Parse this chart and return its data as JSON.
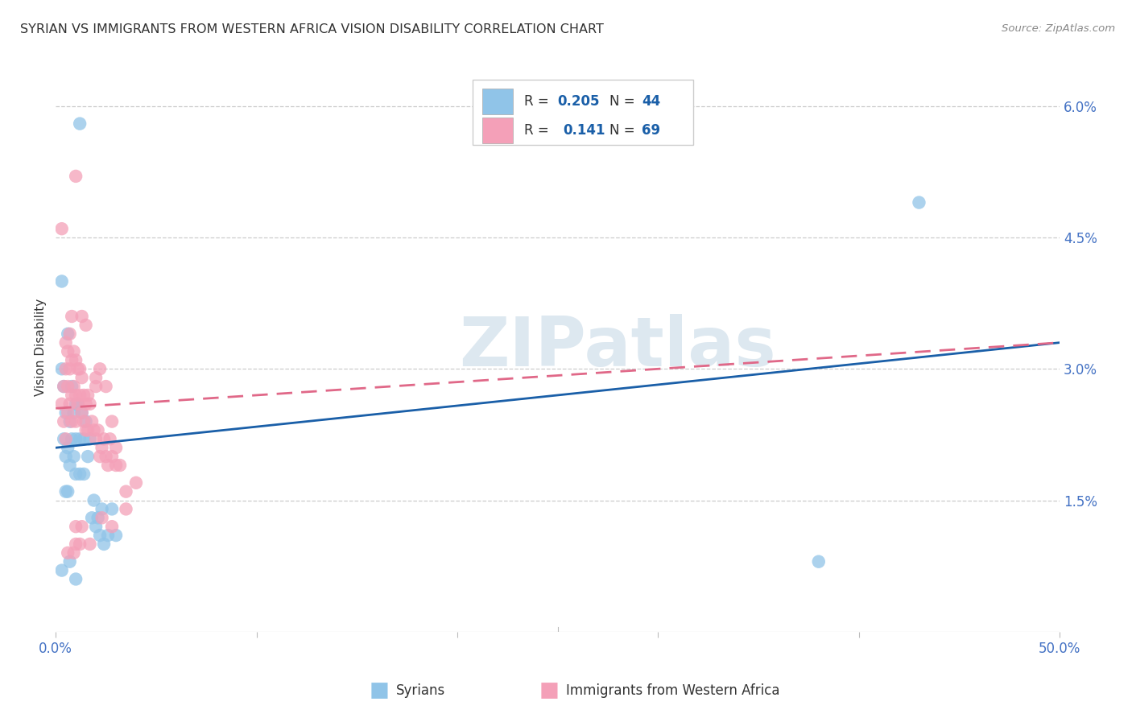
{
  "title": "SYRIAN VS IMMIGRANTS FROM WESTERN AFRICA VISION DISABILITY CORRELATION CHART",
  "source": "Source: ZipAtlas.com",
  "ylabel": "Vision Disability",
  "xlim": [
    0.0,
    0.5
  ],
  "ylim": [
    0.0,
    0.065
  ],
  "legend_blue_R": "0.205",
  "legend_blue_N": "44",
  "legend_pink_R": "0.141",
  "legend_pink_N": "69",
  "scatter_color_blue": "#90c4e8",
  "scatter_color_pink": "#f4a0b8",
  "line_blue_color": "#1a5fa8",
  "line_pink_color": "#e06888",
  "legend_val_color": "#1a5fa8",
  "watermark_color": "#dde8f0",
  "grid_color": "#cccccc",
  "axis_tick_color": "#4472c4",
  "title_color": "#333333",
  "source_color": "#888888",
  "bg_color": "#ffffff",
  "blue_line_x0": 0.0,
  "blue_line_y0": 0.021,
  "blue_line_x1": 0.5,
  "blue_line_y1": 0.033,
  "pink_line_x0": 0.0,
  "pink_line_y0": 0.0255,
  "pink_line_x1": 0.5,
  "pink_line_y1": 0.033,
  "scatter_blue_x": [
    0.012,
    0.003,
    0.004,
    0.004,
    0.005,
    0.005,
    0.005,
    0.006,
    0.006,
    0.007,
    0.007,
    0.008,
    0.009,
    0.009,
    0.01,
    0.01,
    0.01,
    0.011,
    0.012,
    0.012,
    0.013,
    0.014,
    0.014,
    0.015,
    0.016,
    0.017,
    0.018,
    0.019,
    0.02,
    0.021,
    0.022,
    0.023,
    0.024,
    0.026,
    0.028,
    0.03,
    0.003,
    0.006,
    0.008,
    0.003,
    0.007,
    0.01,
    0.38,
    0.43
  ],
  "scatter_blue_y": [
    0.058,
    0.03,
    0.028,
    0.022,
    0.025,
    0.02,
    0.016,
    0.021,
    0.016,
    0.024,
    0.019,
    0.022,
    0.025,
    0.02,
    0.026,
    0.022,
    0.018,
    0.026,
    0.022,
    0.018,
    0.025,
    0.022,
    0.018,
    0.024,
    0.02,
    0.022,
    0.013,
    0.015,
    0.012,
    0.013,
    0.011,
    0.014,
    0.01,
    0.011,
    0.014,
    0.011,
    0.04,
    0.034,
    0.028,
    0.007,
    0.008,
    0.006,
    0.008,
    0.049
  ],
  "scatter_pink_x": [
    0.003,
    0.003,
    0.004,
    0.004,
    0.005,
    0.005,
    0.005,
    0.006,
    0.006,
    0.006,
    0.007,
    0.007,
    0.007,
    0.008,
    0.008,
    0.008,
    0.009,
    0.009,
    0.01,
    0.01,
    0.01,
    0.011,
    0.011,
    0.012,
    0.012,
    0.013,
    0.013,
    0.014,
    0.014,
    0.015,
    0.015,
    0.016,
    0.016,
    0.017,
    0.018,
    0.019,
    0.02,
    0.021,
    0.022,
    0.023,
    0.024,
    0.025,
    0.026,
    0.027,
    0.028,
    0.03,
    0.032,
    0.025,
    0.02,
    0.035,
    0.03,
    0.035,
    0.04,
    0.013,
    0.01,
    0.012,
    0.008,
    0.01,
    0.013,
    0.017,
    0.006,
    0.009,
    0.023,
    0.028,
    0.01,
    0.015,
    0.022,
    0.028,
    0.02
  ],
  "scatter_pink_y": [
    0.046,
    0.026,
    0.028,
    0.024,
    0.033,
    0.03,
    0.022,
    0.032,
    0.028,
    0.025,
    0.034,
    0.03,
    0.026,
    0.031,
    0.027,
    0.024,
    0.032,
    0.028,
    0.031,
    0.027,
    0.024,
    0.03,
    0.026,
    0.03,
    0.027,
    0.029,
    0.025,
    0.027,
    0.024,
    0.026,
    0.023,
    0.027,
    0.023,
    0.026,
    0.024,
    0.023,
    0.022,
    0.023,
    0.02,
    0.021,
    0.022,
    0.02,
    0.019,
    0.022,
    0.02,
    0.021,
    0.019,
    0.028,
    0.028,
    0.016,
    0.019,
    0.014,
    0.017,
    0.036,
    0.012,
    0.01,
    0.036,
    0.01,
    0.012,
    0.01,
    0.009,
    0.009,
    0.013,
    0.012,
    0.052,
    0.035,
    0.03,
    0.024,
    0.029
  ]
}
